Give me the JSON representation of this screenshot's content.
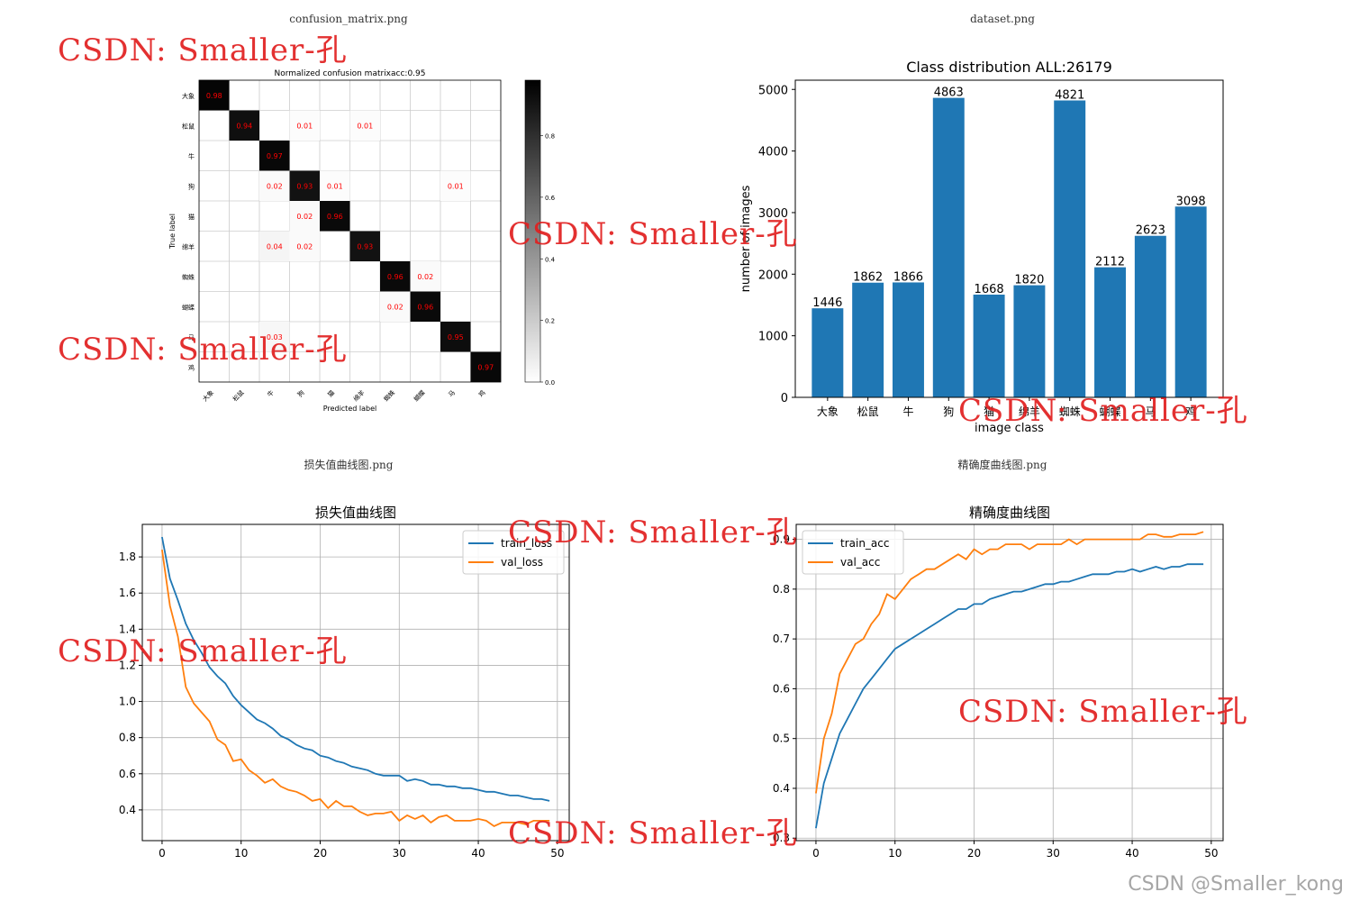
{
  "panels": {
    "cm_file": "confusion_matrix.png",
    "ds_file": "dataset.png",
    "loss_file": "损失值曲线图.png",
    "acc_file": "精确度曲线图.png"
  },
  "watermark": "CSDN: Smaller-孔",
  "footer": "CSDN @Smaller_kong",
  "colors": {
    "bar": "#1f77b4",
    "series1": "#1f77b4",
    "series2": "#ff7f0e",
    "cell_text": "#ff0000",
    "watermark": "#e11e1e"
  },
  "chart_data": [
    {
      "type": "heatmap",
      "title": "Normalized confusion matrixacc:0.95",
      "xlabel": "Predicted label",
      "ylabel": "True label",
      "labels": [
        "大象",
        "松鼠",
        "牛",
        "狗",
        "猫",
        "绵羊",
        "蜘蛛",
        "蝴蝶",
        "马",
        "鸡"
      ],
      "colorbar_ticks": [
        "0.0",
        "0.2",
        "0.4",
        "0.6",
        "0.8"
      ],
      "cells": [
        {
          "row": 0,
          "col": 0,
          "value": 0.98,
          "label": "0.98"
        },
        {
          "row": 1,
          "col": 1,
          "value": 0.94,
          "label": "0.94"
        },
        {
          "row": 1,
          "col": 3,
          "value": 0.01,
          "label": "0.01"
        },
        {
          "row": 1,
          "col": 5,
          "value": 0.01,
          "label": "0.01"
        },
        {
          "row": 2,
          "col": 2,
          "value": 0.97,
          "label": "0.97"
        },
        {
          "row": 3,
          "col": 2,
          "value": 0.02,
          "label": "0.02"
        },
        {
          "row": 3,
          "col": 3,
          "value": 0.93,
          "label": "0.93"
        },
        {
          "row": 3,
          "col": 4,
          "value": 0.01,
          "label": "0.01"
        },
        {
          "row": 3,
          "col": 8,
          "value": 0.01,
          "label": "0.01"
        },
        {
          "row": 4,
          "col": 3,
          "value": 0.02,
          "label": "0.02"
        },
        {
          "row": 4,
          "col": 4,
          "value": 0.96,
          "label": "0.96"
        },
        {
          "row": 5,
          "col": 2,
          "value": 0.04,
          "label": "0.04"
        },
        {
          "row": 5,
          "col": 3,
          "value": 0.02,
          "label": "0.02"
        },
        {
          "row": 5,
          "col": 5,
          "value": 0.93,
          "label": "0.93"
        },
        {
          "row": 6,
          "col": 6,
          "value": 0.96,
          "label": "0.96"
        },
        {
          "row": 6,
          "col": 7,
          "value": 0.02,
          "label": "0.02"
        },
        {
          "row": 7,
          "col": 6,
          "value": 0.02,
          "label": "0.02"
        },
        {
          "row": 7,
          "col": 7,
          "value": 0.96,
          "label": "0.96"
        },
        {
          "row": 8,
          "col": 2,
          "value": 0.03,
          "label": "0.03"
        },
        {
          "row": 8,
          "col": 8,
          "value": 0.95,
          "label": "0.95"
        },
        {
          "row": 9,
          "col": 9,
          "value": 0.97,
          "label": "0.97"
        }
      ]
    },
    {
      "type": "bar",
      "title": "Class distribution ALL:26179",
      "xlabel": "image class",
      "ylabel": "number of images",
      "categories": [
        "大象",
        "松鼠",
        "牛",
        "狗",
        "猫",
        "绵羊",
        "蜘蛛",
        "蝴蝶",
        "马",
        "鸡"
      ],
      "values": [
        1446,
        1862,
        1866,
        4863,
        1668,
        1820,
        4821,
        2112,
        2623,
        3098
      ],
      "ylim": [
        0,
        5150
      ],
      "yticks": [
        0,
        1000,
        2000,
        3000,
        4000,
        5000
      ]
    },
    {
      "type": "line",
      "title": "损失值曲线图",
      "x": [
        0,
        1,
        2,
        3,
        4,
        5,
        6,
        7,
        8,
        9,
        10,
        11,
        12,
        13,
        14,
        15,
        16,
        17,
        18,
        19,
        20,
        21,
        22,
        23,
        24,
        25,
        26,
        27,
        28,
        29,
        30,
        31,
        32,
        33,
        34,
        35,
        36,
        37,
        38,
        39,
        40,
        41,
        42,
        43,
        44,
        45,
        46,
        47,
        48,
        49
      ],
      "series": [
        {
          "name": "train_loss",
          "values": [
            1.91,
            1.68,
            1.56,
            1.43,
            1.34,
            1.27,
            1.19,
            1.14,
            1.1,
            1.03,
            0.98,
            0.94,
            0.9,
            0.88,
            0.85,
            0.81,
            0.79,
            0.76,
            0.74,
            0.73,
            0.7,
            0.69,
            0.67,
            0.66,
            0.64,
            0.63,
            0.62,
            0.6,
            0.59,
            0.59,
            0.59,
            0.56,
            0.57,
            0.56,
            0.54,
            0.54,
            0.53,
            0.53,
            0.52,
            0.52,
            0.51,
            0.5,
            0.5,
            0.49,
            0.48,
            0.48,
            0.47,
            0.46,
            0.46,
            0.45
          ]
        },
        {
          "name": "val_loss",
          "values": [
            1.84,
            1.53,
            1.36,
            1.08,
            0.99,
            0.94,
            0.89,
            0.79,
            0.76,
            0.67,
            0.68,
            0.62,
            0.59,
            0.55,
            0.57,
            0.53,
            0.51,
            0.5,
            0.48,
            0.45,
            0.46,
            0.41,
            0.45,
            0.42,
            0.42,
            0.39,
            0.37,
            0.38,
            0.38,
            0.39,
            0.34,
            0.37,
            0.35,
            0.37,
            0.33,
            0.36,
            0.37,
            0.34,
            0.34,
            0.34,
            0.35,
            0.34,
            0.31,
            0.33,
            0.33,
            0.33,
            0.32,
            0.34,
            0.34,
            0.34
          ]
        }
      ],
      "xlim": [
        -2.5,
        51.5
      ],
      "ylim": [
        0.23,
        1.98
      ],
      "xticks": [
        0,
        10,
        20,
        30,
        40,
        50
      ],
      "yticks": [
        0.4,
        0.6,
        0.8,
        1.0,
        1.2,
        1.4,
        1.6,
        1.8
      ],
      "grid": true,
      "legend": "top-right"
    },
    {
      "type": "line",
      "title": "精确度曲线图",
      "x": [
        0,
        1,
        2,
        3,
        4,
        5,
        6,
        7,
        8,
        9,
        10,
        11,
        12,
        13,
        14,
        15,
        16,
        17,
        18,
        19,
        20,
        21,
        22,
        23,
        24,
        25,
        26,
        27,
        28,
        29,
        30,
        31,
        32,
        33,
        34,
        35,
        36,
        37,
        38,
        39,
        40,
        41,
        42,
        43,
        44,
        45,
        46,
        47,
        48,
        49
      ],
      "series": [
        {
          "name": "train_acc",
          "values": [
            0.32,
            0.41,
            0.46,
            0.51,
            0.54,
            0.57,
            0.6,
            0.62,
            0.64,
            0.66,
            0.68,
            0.69,
            0.7,
            0.71,
            0.72,
            0.73,
            0.74,
            0.75,
            0.76,
            0.76,
            0.77,
            0.77,
            0.78,
            0.785,
            0.79,
            0.795,
            0.795,
            0.8,
            0.805,
            0.81,
            0.81,
            0.815,
            0.815,
            0.82,
            0.825,
            0.83,
            0.83,
            0.83,
            0.835,
            0.835,
            0.84,
            0.835,
            0.84,
            0.845,
            0.84,
            0.845,
            0.845,
            0.85,
            0.85,
            0.85
          ]
        },
        {
          "name": "val_acc",
          "values": [
            0.39,
            0.5,
            0.55,
            0.63,
            0.66,
            0.69,
            0.7,
            0.73,
            0.75,
            0.79,
            0.78,
            0.8,
            0.82,
            0.83,
            0.84,
            0.84,
            0.85,
            0.86,
            0.87,
            0.86,
            0.88,
            0.87,
            0.88,
            0.88,
            0.89,
            0.89,
            0.89,
            0.88,
            0.89,
            0.89,
            0.89,
            0.89,
            0.9,
            0.89,
            0.9,
            0.9,
            0.9,
            0.9,
            0.9,
            0.9,
            0.9,
            0.9,
            0.91,
            0.91,
            0.905,
            0.905,
            0.91,
            0.91,
            0.91,
            0.915
          ]
        }
      ],
      "xlim": [
        -2.5,
        51.5
      ],
      "ylim": [
        0.295,
        0.93
      ],
      "xticks": [
        0,
        10,
        20,
        30,
        40,
        50
      ],
      "yticks": [
        0.3,
        0.4,
        0.5,
        0.6,
        0.7,
        0.8,
        0.9
      ],
      "grid": true,
      "legend": "top-left"
    }
  ]
}
